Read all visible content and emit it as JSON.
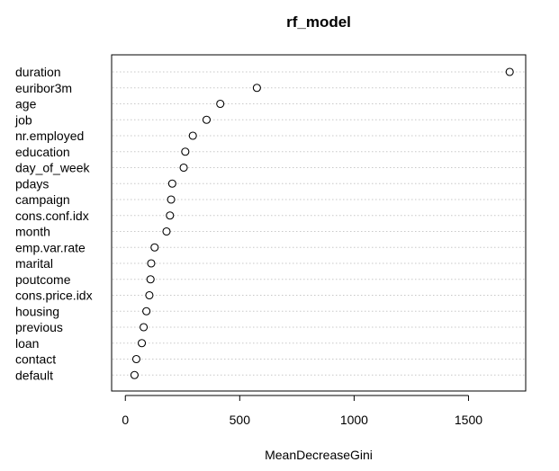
{
  "chart_data": {
    "type": "scatter",
    "title": "rf_model",
    "xlabel": "MeanDecreaseGini",
    "ylabel": "",
    "xlim": [
      -60,
      1750
    ],
    "xticks": [
      0,
      500,
      1000,
      1500
    ],
    "xtick_labels": [
      "0",
      "500",
      "1000",
      "1500"
    ],
    "grid": false,
    "categories": [
      "duration",
      "euribor3m",
      "age",
      "job",
      "nr.employed",
      "education",
      "day_of_week",
      "pdays",
      "campaign",
      "cons.conf.idx",
      "month",
      "emp.var.rate",
      "marital",
      "poutcome",
      "cons.price.idx",
      "housing",
      "previous",
      "loan",
      "contact",
      "default"
    ],
    "values": [
      1680,
      575,
      415,
      355,
      295,
      262,
      255,
      205,
      200,
      195,
      180,
      128,
      113,
      110,
      105,
      92,
      80,
      72,
      48,
      40
    ]
  }
}
